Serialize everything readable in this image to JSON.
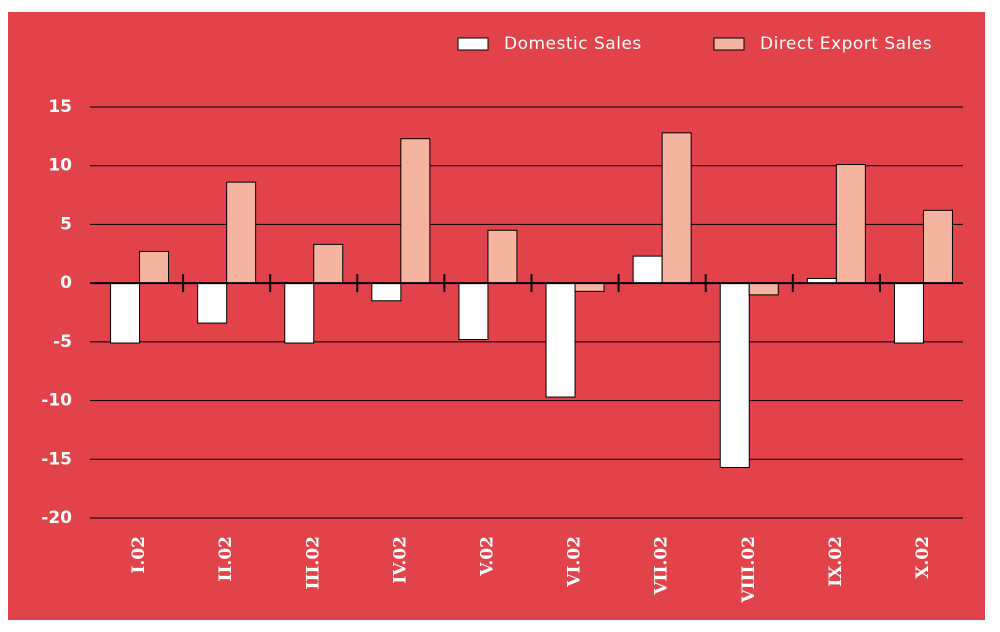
{
  "chart_data": {
    "type": "bar",
    "categories": [
      "I.02",
      "II.02",
      "III.02",
      "IV.02",
      "V.02",
      "VI.02",
      "VII.02",
      "VIII.02",
      "IX.02",
      "X.02"
    ],
    "series": [
      {
        "name": "Domestic Sales",
        "color": "#ffffff",
        "values": [
          -5.1,
          -3.4,
          -5.1,
          -1.5,
          -4.8,
          -9.7,
          2.3,
          -15.7,
          0.4,
          -5.1
        ]
      },
      {
        "name": "Direct Export Sales",
        "color": "#f4b4a0",
        "values": [
          2.7,
          8.6,
          3.3,
          12.3,
          4.5,
          -0.7,
          12.8,
          -1.0,
          10.1,
          6.2
        ]
      }
    ],
    "ylim": [
      -20,
      15
    ],
    "yticks": [
      -20,
      -15,
      -10,
      -5,
      0,
      5,
      10,
      15
    ],
    "grid": true,
    "legend": "top-right"
  }
}
